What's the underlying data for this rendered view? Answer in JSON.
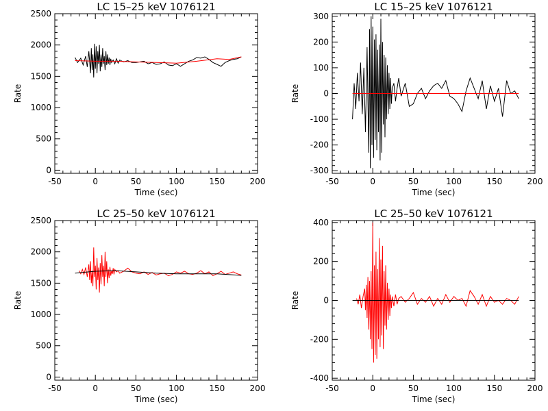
{
  "figure": {
    "background": "#ffffff",
    "panels": [
      {
        "title": "LC 15–25 keV  1076121",
        "xlabel": "Time (sec)",
        "ylabel": "Rate",
        "xlim": [
          -50,
          200
        ],
        "ylim": [
          -50,
          2500
        ],
        "xticks": [
          -50,
          0,
          50,
          100,
          150,
          200
        ],
        "yticks": [
          0,
          500,
          1000,
          1500,
          2000,
          2500
        ],
        "data_color": "#000000",
        "model_color": "#ff0000"
      },
      {
        "title": "LC 15–25 keV  1076121",
        "xlabel": "Time (sec)",
        "ylabel": "Rate",
        "xlim": [
          -50,
          200
        ],
        "ylim": [
          -310,
          310
        ],
        "xticks": [
          -50,
          0,
          50,
          100,
          150,
          200
        ],
        "yticks": [
          -300,
          -200,
          -100,
          0,
          100,
          200,
          300
        ],
        "data_color": "#000000",
        "model_color": "#ff0000"
      },
      {
        "title": "LC 25–50 keV  1076121",
        "xlabel": "Time (sec)",
        "ylabel": "Rate",
        "xlim": [
          -50,
          200
        ],
        "ylim": [
          -50,
          2500
        ],
        "xticks": [
          -50,
          0,
          50,
          100,
          150,
          200
        ],
        "yticks": [
          0,
          500,
          1000,
          1500,
          2000,
          2500
        ],
        "data_color": "#ff0000",
        "model_color": "#000000"
      },
      {
        "title": "LC 25–50 keV  1076121",
        "xlabel": "Time (sec)",
        "ylabel": "Rate",
        "xlim": [
          -50,
          200
        ],
        "ylim": [
          -410,
          410
        ],
        "xticks": [
          -50,
          0,
          50,
          100,
          150,
          200
        ],
        "yticks": [
          -400,
          -200,
          0,
          200,
          400
        ],
        "data_color": "#ff0000",
        "model_color": "#000000"
      }
    ]
  },
  "chart_data": [
    {
      "type": "line",
      "title": "LC 15–25 keV  1076121",
      "xlabel": "Time (sec)",
      "ylabel": "Rate",
      "xlim": [
        -50,
        200
      ],
      "ylim": [
        -50,
        2500
      ],
      "grid": false,
      "series": [
        {
          "color": "#000000",
          "x": [
            -25,
            -22,
            -18,
            -15,
            -12,
            -10,
            -8,
            -6,
            -5,
            -4,
            -3,
            -2,
            -1,
            0,
            1,
            2,
            3,
            4,
            5,
            6,
            7,
            8,
            9,
            10,
            11,
            12,
            13,
            14,
            15,
            16,
            17,
            18,
            19,
            20,
            22,
            24,
            26,
            28,
            30,
            35,
            40,
            45,
            50,
            55,
            60,
            65,
            70,
            75,
            80,
            85,
            90,
            95,
            100,
            105,
            110,
            115,
            120,
            125,
            130,
            135,
            140,
            145,
            150,
            155,
            160,
            165,
            170,
            175,
            180
          ],
          "y": [
            1800,
            1720,
            1790,
            1680,
            1820,
            1650,
            1900,
            1550,
            1950,
            1600,
            1850,
            1480,
            2020,
            1620,
            1980,
            1550,
            1900,
            1700,
            2000,
            1580,
            1850,
            1650,
            1950,
            1700,
            1820,
            1600,
            1900,
            1680,
            1850,
            1700,
            1800,
            1680,
            1780,
            1720,
            1760,
            1700,
            1780,
            1710,
            1760,
            1730,
            1750,
            1720,
            1720,
            1730,
            1740,
            1700,
            1720,
            1690,
            1700,
            1730,
            1680,
            1670,
            1700,
            1660,
            1700,
            1740,
            1760,
            1800,
            1790,
            1810,
            1770,
            1720,
            1690,
            1660,
            1720,
            1750,
            1770,
            1780,
            1810
          ]
        },
        {
          "color": "#ff0000",
          "x": [
            -25,
            0,
            25,
            50,
            75,
            100,
            125,
            150,
            165,
            180
          ],
          "y": [
            1750,
            1740,
            1740,
            1730,
            1720,
            1710,
            1740,
            1780,
            1770,
            1810
          ]
        }
      ]
    },
    {
      "type": "line",
      "title": "LC 15–25 keV  1076121",
      "xlabel": "Time (sec)",
      "ylabel": "Rate",
      "xlim": [
        -50,
        200
      ],
      "ylim": [
        -310,
        310
      ],
      "grid": false,
      "series": [
        {
          "color": "#000000",
          "x": [
            -25,
            -23,
            -21,
            -19,
            -17,
            -15,
            -13,
            -11,
            -9,
            -7,
            -5,
            -4,
            -3,
            -2,
            -1,
            0,
            1,
            2,
            3,
            4,
            5,
            6,
            7,
            8,
            9,
            10,
            11,
            12,
            13,
            14,
            15,
            16,
            17,
            18,
            19,
            20,
            21,
            22,
            23,
            24,
            26,
            28,
            30,
            32,
            35,
            40,
            45,
            50,
            55,
            60,
            65,
            70,
            75,
            80,
            85,
            90,
            95,
            100,
            105,
            110,
            115,
            120,
            125,
            130,
            135,
            140,
            145,
            150,
            155,
            160,
            165,
            170,
            175,
            180
          ],
          "y": [
            -100,
            40,
            -60,
            80,
            -30,
            120,
            -80,
            100,
            -150,
            180,
            -230,
            250,
            -290,
            300,
            -200,
            260,
            -250,
            210,
            -180,
            230,
            -220,
            170,
            -150,
            190,
            -260,
            290,
            -230,
            200,
            -120,
            150,
            -170,
            140,
            -100,
            110,
            -80,
            80,
            -60,
            60,
            -40,
            20,
            40,
            -30,
            20,
            60,
            -10,
            40,
            -50,
            -40,
            0,
            20,
            -20,
            10,
            30,
            40,
            20,
            50,
            -10,
            -20,
            -40,
            -70,
            10,
            60,
            20,
            -20,
            50,
            -60,
            30,
            -30,
            20,
            -90,
            50,
            0,
            10,
            -20
          ]
        },
        {
          "color": "#ff0000",
          "x": [
            -25,
            180
          ],
          "y": [
            0,
            0
          ]
        }
      ]
    },
    {
      "type": "line",
      "title": "LC 25–50 keV  1076121",
      "xlabel": "Time (sec)",
      "ylabel": "Rate",
      "xlim": [
        -50,
        200
      ],
      "ylim": [
        -50,
        2500
      ],
      "grid": false,
      "series": [
        {
          "color": "#ff0000",
          "x": [
            -20,
            -18,
            -16,
            -14,
            -12,
            -10,
            -8,
            -7,
            -6,
            -5,
            -4,
            -3,
            -2,
            -1,
            0,
            1,
            2,
            3,
            4,
            5,
            6,
            7,
            8,
            9,
            10,
            11,
            12,
            13,
            14,
            15,
            16,
            17,
            18,
            19,
            20,
            21,
            22,
            23,
            24,
            26,
            28,
            30,
            35,
            40,
            45,
            50,
            55,
            60,
            65,
            70,
            75,
            80,
            85,
            90,
            95,
            100,
            105,
            110,
            115,
            120,
            125,
            130,
            135,
            140,
            145,
            150,
            155,
            160,
            165,
            170,
            175,
            180
          ],
          "y": [
            1700,
            1650,
            1720,
            1640,
            1750,
            1600,
            1800,
            1550,
            1850,
            1500,
            1700,
            1450,
            2070,
            1600,
            1780,
            1400,
            1900,
            1550,
            1750,
            1350,
            1820,
            1480,
            1950,
            1600,
            1780,
            1450,
            2000,
            1600,
            1850,
            1500,
            1720,
            1580,
            1760,
            1620,
            1700,
            1650,
            1740,
            1640,
            1720,
            1680,
            1700,
            1660,
            1690,
            1740,
            1680,
            1660,
            1650,
            1680,
            1640,
            1670,
            1630,
            1650,
            1660,
            1620,
            1640,
            1680,
            1660,
            1690,
            1650,
            1640,
            1660,
            1700,
            1650,
            1680,
            1620,
            1650,
            1690,
            1640,
            1660,
            1680,
            1650,
            1630
          ]
        },
        {
          "color": "#000000",
          "x": [
            -25,
            0,
            25,
            50,
            75,
            100,
            125,
            150,
            180
          ],
          "y": [
            1660,
            1690,
            1700,
            1680,
            1660,
            1650,
            1650,
            1650,
            1625
          ]
        }
      ]
    },
    {
      "type": "line",
      "title": "LC 25–50 keV  1076121",
      "xlabel": "Time (sec)",
      "ylabel": "Rate",
      "xlim": [
        -50,
        200
      ],
      "ylim": [
        -410,
        410
      ],
      "grid": false,
      "series": [
        {
          "color": "#ff0000",
          "x": [
            -20,
            -18,
            -16,
            -14,
            -12,
            -10,
            -9,
            -8,
            -7,
            -6,
            -5,
            -4,
            -3,
            -2,
            -1,
            0,
            1,
            2,
            3,
            4,
            5,
            6,
            7,
            8,
            9,
            10,
            11,
            12,
            13,
            14,
            15,
            16,
            17,
            18,
            19,
            20,
            21,
            22,
            23,
            24,
            26,
            28,
            30,
            32,
            35,
            40,
            45,
            50,
            55,
            60,
            65,
            70,
            75,
            80,
            85,
            90,
            95,
            100,
            105,
            110,
            115,
            120,
            125,
            130,
            135,
            140,
            145,
            150,
            155,
            160,
            165,
            170,
            175,
            180
          ],
          "y": [
            10,
            -20,
            30,
            -40,
            20,
            60,
            -50,
            80,
            -90,
            120,
            -150,
            100,
            -200,
            150,
            -250,
            400,
            -320,
            180,
            -280,
            250,
            -300,
            160,
            -200,
            320,
            -240,
            210,
            -180,
            280,
            -250,
            150,
            -130,
            180,
            -150,
            90,
            -100,
            60,
            -80,
            30,
            -40,
            20,
            -30,
            30,
            -20,
            10,
            20,
            -10,
            10,
            40,
            -20,
            10,
            -10,
            20,
            -30,
            10,
            -20,
            30,
            -10,
            20,
            0,
            10,
            -30,
            50,
            20,
            -20,
            30,
            -30,
            20,
            -10,
            0,
            -20,
            10,
            0,
            -20,
            20
          ]
        },
        {
          "color": "#000000",
          "x": [
            -25,
            180
          ],
          "y": [
            0,
            0
          ]
        }
      ]
    }
  ]
}
